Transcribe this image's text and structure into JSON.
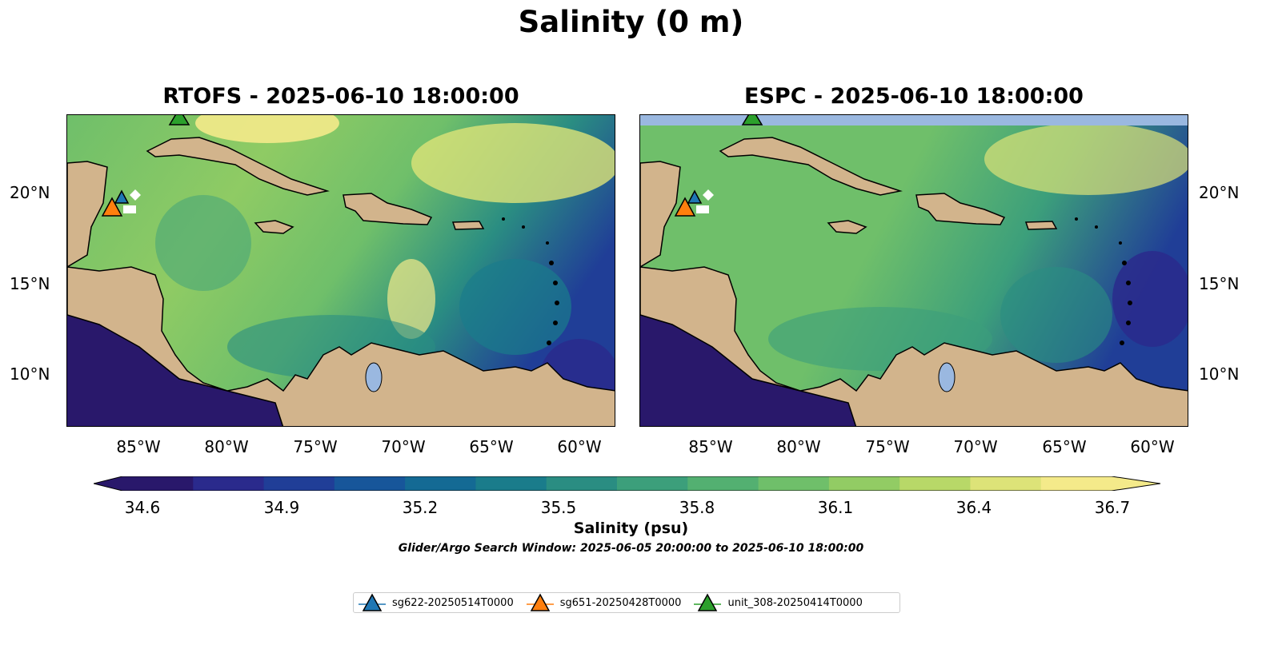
{
  "figure": {
    "title": "Salinity (0 m)"
  },
  "panels": [
    {
      "title": "RTOFS - 2025-06-10 18:00:00"
    },
    {
      "title": "ESPC - 2025-06-10 18:00:00"
    }
  ],
  "axes": {
    "lat_ticks": [
      "20°N",
      "15°N",
      "10°N"
    ],
    "lon_ticks": [
      "85°W",
      "80°W",
      "75°W",
      "70°W",
      "65°W",
      "60°W"
    ]
  },
  "colorbar": {
    "label": "Salinity (psu)",
    "ticks": [
      "34.6",
      "34.9",
      "35.2",
      "35.5",
      "35.8",
      "36.1",
      "36.4",
      "36.7"
    ],
    "min": 34.6,
    "max": 36.7,
    "colormap": [
      "#29186b",
      "#2a2a8c",
      "#203e97",
      "#17569a",
      "#146a94",
      "#1a7c8b",
      "#2a8d82",
      "#3c9f7b",
      "#53b071",
      "#6fbf6a",
      "#92cc64",
      "#b8d868",
      "#dde378",
      "#f4ea8a"
    ],
    "extend": "both"
  },
  "search_window": "Glider/Argo Search Window: 2025-06-05 20:00:00 to 2025-06-10 18:00:00",
  "legend": {
    "items": [
      {
        "label": "sg622-20250514T0000",
        "color": "#1f77b4"
      },
      {
        "label": "sg651-20250428T0000",
        "color": "#ff7f0e"
      },
      {
        "label": "unit_308-20250414T0000",
        "color": "#2ca02c"
      }
    ]
  },
  "colors": {
    "land": "#d2b48c",
    "ocean_pacific": "#29186b",
    "lake": "#9ab8e0",
    "missing": "#9ab8e0"
  }
}
